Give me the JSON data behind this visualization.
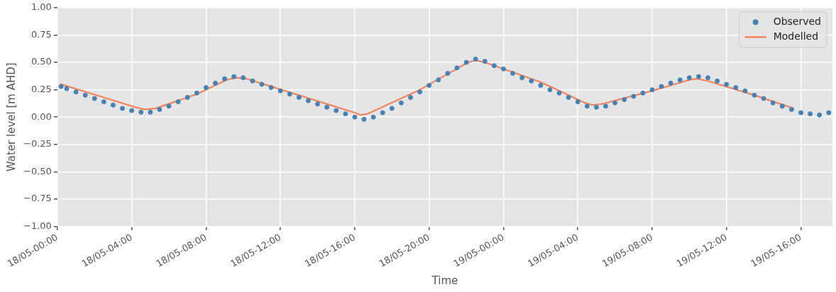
{
  "chart_data": {
    "type": "line",
    "xlabel": "Time",
    "ylabel": "Water level [m AHD]",
    "xlim": [
      "--05-18T00:00",
      "--05-19T17:42"
    ],
    "xticks": [
      {
        "value": "--05-18T00:00",
        "label": "18/05-00:00"
      },
      {
        "value": "--05-18T04:00",
        "label": "18/05-04:00"
      },
      {
        "value": "--05-18T08:00",
        "label": "18/05-08:00"
      },
      {
        "value": "--05-18T12:00",
        "label": "18/05-12:00"
      },
      {
        "value": "--05-18T16:00",
        "label": "18/05-16:00"
      },
      {
        "value": "--05-18T20:00",
        "label": "18/05-20:00"
      },
      {
        "value": "--05-19T00:00",
        "label": "19/05-00:00"
      },
      {
        "value": "--05-19T04:00",
        "label": "19/05-04:00"
      },
      {
        "value": "--05-19T08:00",
        "label": "19/05-08:00"
      },
      {
        "value": "--05-19T12:00",
        "label": "19/05-12:00"
      },
      {
        "value": "--05-19T16:00",
        "label": "19/05-16:00"
      }
    ],
    "ylim": [
      -1,
      1
    ],
    "yticks": [
      {
        "value": -1,
        "label": "−1.00"
      },
      {
        "value": -0.75,
        "label": "−0.75"
      },
      {
        "value": -0.5,
        "label": "−0.50"
      },
      {
        "value": -0.25,
        "label": "−0.25"
      },
      {
        "value": 0,
        "label": "0.00"
      },
      {
        "value": 0.25,
        "label": "0.25"
      },
      {
        "value": 0.5,
        "label": "0.50"
      },
      {
        "value": 0.75,
        "label": "0.75"
      },
      {
        "value": 1,
        "label": "1.00"
      }
    ],
    "grid": true,
    "legend": "top right",
    "series": [
      {
        "name": "Observed",
        "type": "scatter",
        "marker": "circle",
        "color": "#4682b4",
        "x": [
          "--05-18T00:12",
          "--05-18T00:30",
          "--05-18T01:00",
          "--05-18T01:30",
          "--05-18T02:00",
          "--05-18T02:30",
          "--05-18T03:00",
          "--05-18T03:30",
          "--05-18T04:00",
          "--05-18T04:30",
          "--05-18T05:00",
          "--05-18T05:30",
          "--05-18T06:00",
          "--05-18T06:30",
          "--05-18T07:00",
          "--05-18T07:30",
          "--05-18T08:00",
          "--05-18T08:30",
          "--05-18T09:00",
          "--05-18T09:30",
          "--05-18T10:00",
          "--05-18T10:30",
          "--05-18T11:00",
          "--05-18T11:30",
          "--05-18T12:00",
          "--05-18T12:30",
          "--05-18T13:00",
          "--05-18T13:30",
          "--05-18T14:00",
          "--05-18T14:30",
          "--05-18T15:00",
          "--05-18T15:30",
          "--05-18T16:00",
          "--05-18T16:30",
          "--05-18T17:00",
          "--05-18T17:30",
          "--05-18T18:00",
          "--05-18T18:30",
          "--05-18T19:00",
          "--05-18T19:30",
          "--05-18T20:00",
          "--05-18T20:30",
          "--05-18T21:00",
          "--05-18T21:30",
          "--05-18T22:00",
          "--05-18T22:30",
          "--05-18T23:00",
          "--05-18T23:30",
          "--05-19T00:00",
          "--05-19T00:30",
          "--05-19T01:00",
          "--05-19T01:30",
          "--05-19T02:00",
          "--05-19T02:30",
          "--05-19T03:00",
          "--05-19T03:30",
          "--05-19T04:00",
          "--05-19T04:30",
          "--05-19T05:00",
          "--05-19T05:30",
          "--05-19T06:00",
          "--05-19T06:30",
          "--05-19T07:00",
          "--05-19T07:30",
          "--05-19T08:00",
          "--05-19T08:30",
          "--05-19T09:00",
          "--05-19T09:30",
          "--05-19T10:00",
          "--05-19T10:30",
          "--05-19T11:00",
          "--05-19T11:30",
          "--05-19T12:00",
          "--05-19T12:30",
          "--05-19T13:00",
          "--05-19T13:30",
          "--05-19T14:00",
          "--05-19T14:30",
          "--05-19T15:00",
          "--05-19T15:30",
          "--05-19T16:00",
          "--05-19T16:30",
          "--05-19T17:00",
          "--05-19T17:30"
        ],
        "values": [
          0.28,
          0.26,
          0.23,
          0.2,
          0.17,
          0.14,
          0.11,
          0.08,
          0.06,
          0.045,
          0.045,
          0.07,
          0.1,
          0.14,
          0.18,
          0.22,
          0.27,
          0.31,
          0.35,
          0.37,
          0.36,
          0.33,
          0.3,
          0.27,
          0.24,
          0.21,
          0.18,
          0.15,
          0.12,
          0.09,
          0.06,
          0.03,
          0,
          -0.02,
          0,
          0.04,
          0.08,
          0.13,
          0.18,
          0.23,
          0.29,
          0.34,
          0.4,
          0.45,
          0.5,
          0.53,
          0.51,
          0.47,
          0.44,
          0.4,
          0.36,
          0.33,
          0.29,
          0.25,
          0.22,
          0.18,
          0.14,
          0.1,
          0.09,
          0.1,
          0.13,
          0.16,
          0.19,
          0.22,
          0.25,
          0.28,
          0.31,
          0.34,
          0.36,
          0.37,
          0.36,
          0.33,
          0.3,
          0.27,
          0.24,
          0.2,
          0.17,
          0.13,
          0.1,
          0.07,
          0.04,
          0.03,
          0.02,
          0.04
        ]
      },
      {
        "name": "Modelled",
        "type": "line",
        "marker": "none",
        "line_style": "solid",
        "color": "#f4845f",
        "x": [
          "--05-18T00:12",
          "--05-18T02:30",
          "--05-18T04:12",
          "--05-18T04:42",
          "--05-18T05:18",
          "--05-18T07:30",
          "--05-18T09:06",
          "--05-18T09:36",
          "--05-18T10:12",
          "--05-18T13:00",
          "--05-18T16:00",
          "--05-18T16:18",
          "--05-18T16:42",
          "--05-18T19:30",
          "--05-18T22:06",
          "--05-18T22:30",
          "--05-18T23:00",
          "--05-19T02:00",
          "--05-19T04:24",
          "--05-19T04:48",
          "--05-19T05:18",
          "--05-19T08:00",
          "--05-19T10:00",
          "--05-19T10:24",
          "--05-19T11:00",
          "--05-19T13:30",
          "--05-19T15:36"
        ],
        "values": [
          0.3,
          0.18,
          0.09,
          0.07,
          0.08,
          0.21,
          0.34,
          0.36,
          0.35,
          0.2,
          0.04,
          0.02,
          0.03,
          0.25,
          0.5,
          0.52,
          0.5,
          0.32,
          0.13,
          0.11,
          0.12,
          0.24,
          0.34,
          0.35,
          0.33,
          0.2,
          0.08
        ]
      }
    ]
  }
}
